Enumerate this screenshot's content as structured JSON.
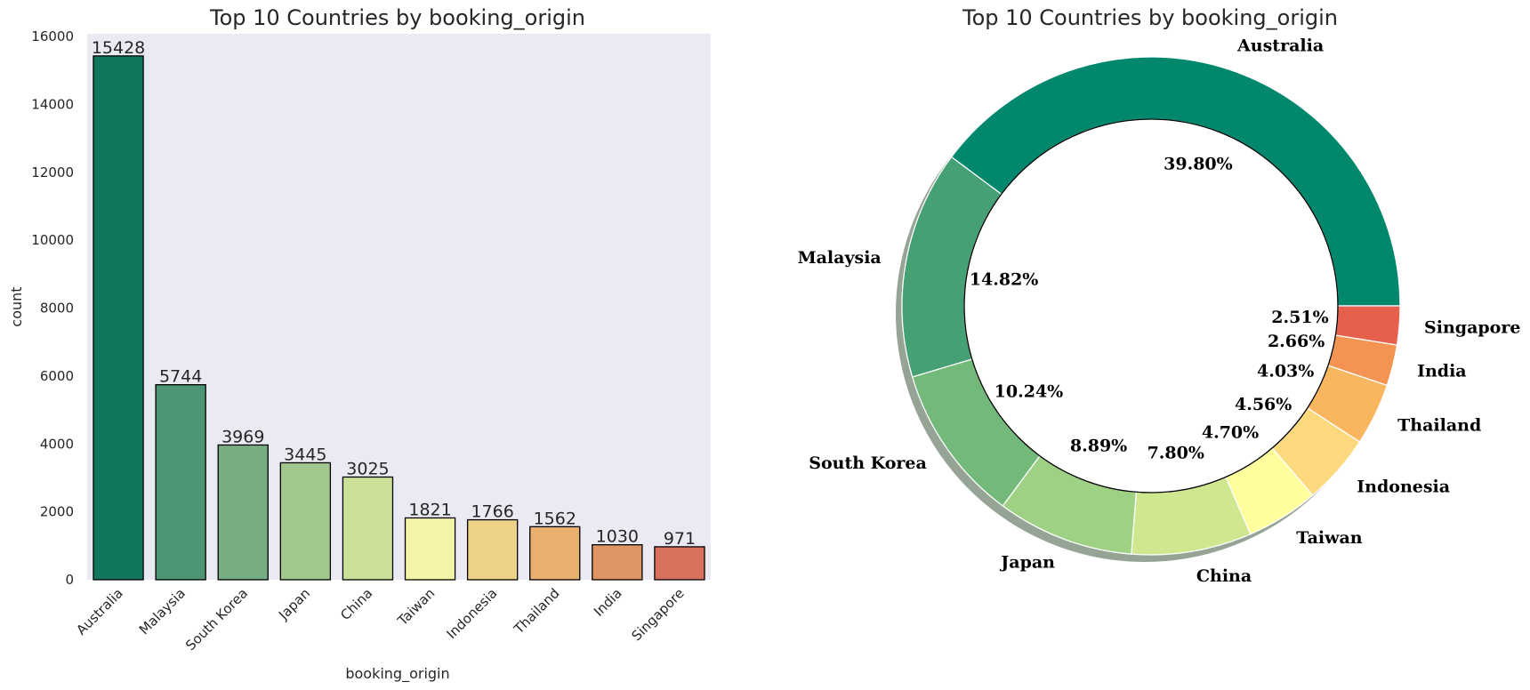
{
  "chart_data": [
    {
      "type": "bar",
      "title": "Top 10 Countries by booking_origin",
      "xlabel": "booking_origin",
      "ylabel": "count",
      "categories": [
        "Australia",
        "Malaysia",
        "South Korea",
        "Japan",
        "China",
        "Taiwan",
        "Indonesia",
        "Thailand",
        "India",
        "Singapore"
      ],
      "values": [
        15428,
        5744,
        3969,
        3445,
        3025,
        1821,
        1766,
        1562,
        1030,
        971
      ],
      "data_labels": [
        "15428",
        "5744",
        "3969",
        "3445",
        "3025",
        "1821",
        "1766",
        "1562",
        "1030",
        "971"
      ],
      "ylim": [
        0,
        16080
      ],
      "yticks": [
        0,
        2000,
        4000,
        6000,
        8000,
        10000,
        12000,
        14000,
        16000
      ],
      "ytick_labels": [
        "0",
        "2000",
        "4000",
        "6000",
        "8000",
        "10000",
        "12000",
        "14000",
        "16000"
      ],
      "grid": false,
      "plot_background": "#eaeaf2",
      "colors": [
        "#12765f",
        "#4e9575",
        "#77ad82",
        "#a1c78c",
        "#cadf98",
        "#f4f4a7",
        "#edd288",
        "#e8b06d",
        "#e09564",
        "#d7715e"
      ]
    },
    {
      "type": "pie",
      "style": "donut",
      "title": "Top 10 Countries by booking_origin",
      "categories": [
        "Australia",
        "Malaysia",
        "South Korea",
        "Japan",
        "China",
        "Taiwan",
        "Indonesia",
        "Thailand",
        "India",
        "Singapore"
      ],
      "values": [
        39.8,
        14.82,
        10.24,
        8.89,
        7.8,
        4.7,
        4.56,
        4.03,
        2.66,
        2.51
      ],
      "pct_labels": [
        "39.80%",
        "14.82%",
        "10.24%",
        "8.89%",
        "7.80%",
        "4.70%",
        "4.56%",
        "4.03%",
        "2.66%",
        "2.51%"
      ],
      "start_angle_deg": 0,
      "direction": "counterclockwise",
      "shadow": true,
      "colors": [
        "#00876c",
        "#45a074",
        "#72b97a",
        "#9fd184",
        "#cfe890",
        "#ffff9d",
        "#fcd97d",
        "#f9b65f",
        "#f39453",
        "#e7604e"
      ]
    }
  ]
}
